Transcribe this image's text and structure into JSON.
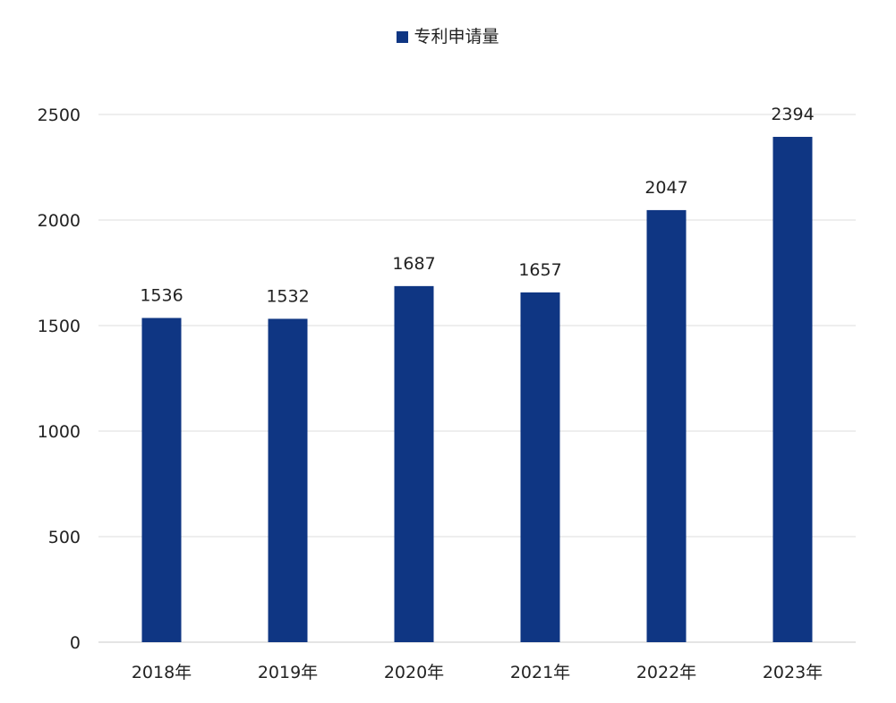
{
  "chart_data": {
    "type": "bar",
    "categories": [
      "2018年",
      "2019年",
      "2020年",
      "2021年",
      "2022年",
      "2023年"
    ],
    "series": [
      {
        "name": "专利申请量",
        "values": [
          1536,
          1532,
          1687,
          1657,
          2047,
          2394
        ],
        "color": "#0f3683"
      }
    ],
    "ylim": [
      0,
      2500
    ],
    "yticks": [
      0,
      500,
      1000,
      1500,
      2000,
      2500
    ],
    "grid": true,
    "legend_position": "top-center",
    "data_labels": true
  }
}
